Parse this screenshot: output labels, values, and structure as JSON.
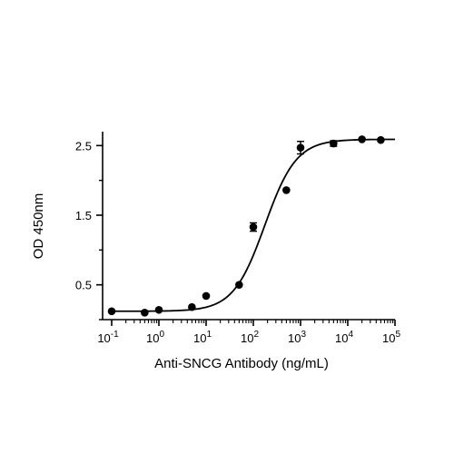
{
  "chart_data": {
    "type": "scatter",
    "title": "",
    "xlabel": "Anti-SNCG Antibody (ng/mL)",
    "ylabel": "OD 450nm",
    "x_scale": "log10",
    "xlim": [
      0.1,
      100000
    ],
    "ylim": [
      0.0,
      2.7
    ],
    "grid": false,
    "legend": "none",
    "x_ticks": [
      {
        "value": 0.1,
        "base": "10",
        "exp": "-1"
      },
      {
        "value": 1,
        "base": "10",
        "exp": "0"
      },
      {
        "value": 10,
        "base": "10",
        "exp": "1"
      },
      {
        "value": 100,
        "base": "10",
        "exp": "2"
      },
      {
        "value": 1000,
        "base": "10",
        "exp": "3"
      },
      {
        "value": 10000,
        "base": "10",
        "exp": "4"
      },
      {
        "value": 100000,
        "base": "10",
        "exp": "5"
      }
    ],
    "y_ticks": [
      {
        "value": 0.5,
        "label": "0.5"
      },
      {
        "value": 1.5,
        "label": "1.5"
      },
      {
        "value": 2.5,
        "label": "2.5"
      }
    ],
    "series": [
      {
        "color": "#000000",
        "points": [
          {
            "x": 0.1,
            "y": 0.12,
            "err": 0.0
          },
          {
            "x": 0.5,
            "y": 0.1,
            "err": 0.0
          },
          {
            "x": 1,
            "y": 0.14,
            "err": 0.0
          },
          {
            "x": 5,
            "y": 0.18,
            "err": 0.0
          },
          {
            "x": 10,
            "y": 0.34,
            "err": 0.0
          },
          {
            "x": 50,
            "y": 0.5,
            "err": 0.0
          },
          {
            "x": 100,
            "y": 1.33,
            "err": 0.06
          },
          {
            "x": 500,
            "y": 1.86,
            "err": 0.0
          },
          {
            "x": 1000,
            "y": 2.47,
            "err": 0.09
          },
          {
            "x": 5000,
            "y": 2.53,
            "err": 0.04
          },
          {
            "x": 20000,
            "y": 2.59,
            "err": 0.0
          },
          {
            "x": 50000,
            "y": 2.58,
            "err": 0.0
          }
        ]
      }
    ],
    "fit_curve": {
      "model": "4PL",
      "bottom": 0.12,
      "top": 2.59,
      "ec50": 175,
      "hill": 1.3
    }
  }
}
